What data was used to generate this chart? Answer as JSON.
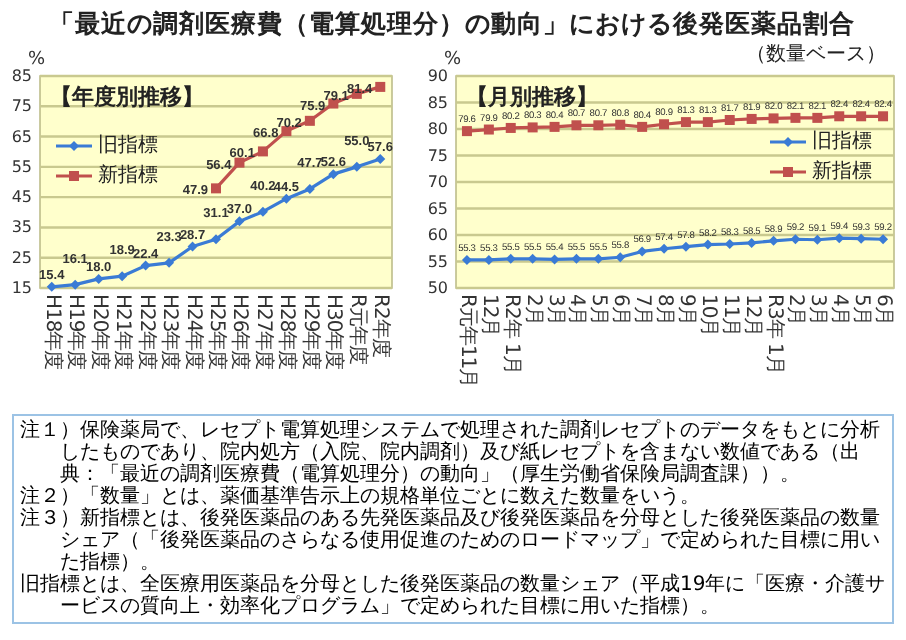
{
  "chart_data": [
    {
      "type": "line",
      "title": "「最近の調剤医療費（電算処理分）の動向」における後発医薬品割合",
      "ylabel": "%",
      "annotations": [
        "【年度別推移】"
      ],
      "categories": [
        "H18年度",
        "H19年度",
        "H20年度",
        "H21年度",
        "H22年度",
        "H23年度",
        "H24年度",
        "H25年度",
        "H26年度",
        "H27年度",
        "H28年度",
        "H29年度",
        "H30年度",
        "R元年度",
        "R2年度"
      ],
      "series": [
        {
          "name": "旧指標",
          "color": "#3a7bd5",
          "marker": "diamond",
          "values": [
            15.4,
            16.1,
            18.0,
            18.9,
            22.4,
            23.3,
            28.7,
            31.1,
            37.0,
            40.2,
            44.5,
            47.7,
            52.6,
            55.0,
            57.6
          ],
          "value_labels": [
            "15.4",
            "16.1",
            "18.0",
            "18.9",
            "22.4",
            "23.3",
            "28.7",
            "31.1",
            "37.0",
            "40.2",
            "44.5",
            "47.7",
            "52.6",
            "55.0",
            "57.6"
          ]
        },
        {
          "name": "新指標",
          "color": "#c0504d",
          "marker": "square",
          "values": [
            null,
            null,
            null,
            null,
            null,
            null,
            null,
            47.9,
            56.4,
            60.1,
            66.8,
            70.2,
            75.9,
            79.1,
            81.4
          ],
          "value_labels": [
            null,
            null,
            null,
            null,
            null,
            null,
            null,
            "47.9",
            "56.4",
            "60.1",
            "66.8",
            "70.2",
            "75.9",
            "79.1",
            "81.4"
          ]
        }
      ],
      "ylim": [
        15,
        85
      ],
      "yticks": [
        15,
        25,
        35,
        45,
        55,
        65,
        75,
        85
      ],
      "grid": "y",
      "legend": "left"
    },
    {
      "type": "line",
      "subtitle": "（数量ベース）",
      "ylabel": "%",
      "annotations": [
        "【月別推移】"
      ],
      "categories": [
        "R元年11月",
        "12月",
        "R2年 1月",
        "2月",
        "3月",
        "4月",
        "5月",
        "6月",
        "7月",
        "8月",
        "9月",
        "10月",
        "11月",
        "12月",
        "R3年 1月",
        "2月",
        "3月",
        "4月",
        "5月",
        "6月"
      ],
      "series": [
        {
          "name": "旧指標",
          "color": "#3a7bd5",
          "marker": "diamond",
          "values": [
            55.3,
            55.3,
            55.5,
            55.5,
            55.4,
            55.5,
            55.5,
            55.8,
            56.9,
            57.4,
            57.8,
            58.2,
            58.3,
            58.5,
            58.9,
            59.2,
            59.1,
            59.4,
            59.3,
            59.2
          ],
          "value_labels": [
            "55.3",
            "55.3",
            "55.5",
            "55.5",
            "55.4",
            "55.5",
            "55.5",
            "55.8",
            "56.9",
            "57.4",
            "57.8",
            "58.2",
            "58.3",
            "58.5",
            "58.9",
            "59.2",
            "59.1",
            "59.4",
            "59.3",
            "59.2"
          ]
        },
        {
          "name": "新指標",
          "color": "#c0504d",
          "marker": "square",
          "values": [
            79.6,
            79.9,
            80.2,
            80.3,
            80.4,
            80.7,
            80.7,
            80.8,
            80.4,
            80.9,
            81.3,
            81.3,
            81.7,
            81.9,
            82.0,
            82.1,
            82.1,
            82.4,
            82.4,
            82.4
          ],
          "value_labels": [
            "79.6",
            "79.9",
            "80.2",
            "80.3",
            "80.4",
            "80.7",
            "80.7",
            "80.8",
            "80.4",
            "80.9",
            "81.3",
            "81.3",
            "81.7",
            "81.9",
            "82.0",
            "82.1",
            "82.1",
            "82.4",
            "82.4",
            "82.4"
          ]
        }
      ],
      "ylim": [
        50,
        90
      ],
      "yticks": [
        50,
        55,
        60,
        65,
        70,
        75,
        80,
        85,
        90
      ],
      "grid": "y",
      "legend": "right"
    },
    {
      "type": "other",
      "annotations": [
        "注１）保険薬局で、レセプト電算処理システムで処理された調剤レセプトのデータをもとに分析したものであり、院内処方（入院、院内調剤）及び紙レセプトを含まない数値である（出典：「最近の調剤医療費（電算処理分）の動向」（厚生労働省保険局調査課））。",
        "注２）「数量」とは、薬価基準告示上の規格単位ごとに数えた数量をいう。",
        "注３）新指標とは、後発医薬品のある先発医薬品及び後発医薬品を分母とした後発医薬品の数量シェア（「後発医薬品のさらなる使用促進のためのロードマップ」で定められた目標に用いた指標）。",
        "旧指標とは、全医療用医薬品を分母とした後発医薬品の数量シェア（平成19年に「医療・介護サービスの質向上・効率化プログラム」で定められた目標に用いた指標）。"
      ]
    }
  ]
}
